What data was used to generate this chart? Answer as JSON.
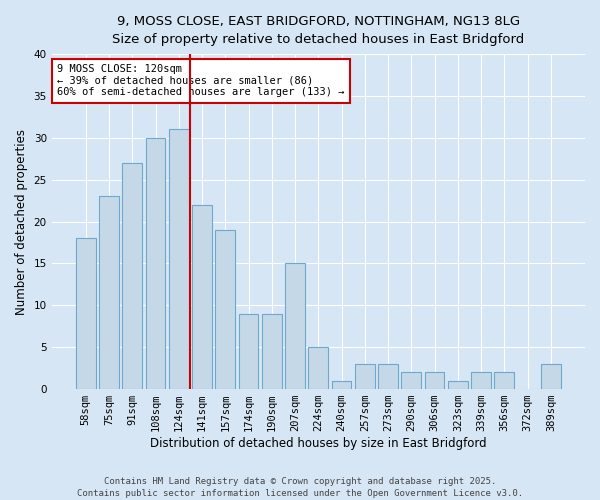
{
  "title_line1": "9, MOSS CLOSE, EAST BRIDGFORD, NOTTINGHAM, NG13 8LG",
  "title_line2": "Size of property relative to detached houses in East Bridgford",
  "xlabel": "Distribution of detached houses by size in East Bridgford",
  "ylabel": "Number of detached properties",
  "categories": [
    "58sqm",
    "75sqm",
    "91sqm",
    "108sqm",
    "124sqm",
    "141sqm",
    "157sqm",
    "174sqm",
    "190sqm",
    "207sqm",
    "224sqm",
    "240sqm",
    "257sqm",
    "273sqm",
    "290sqm",
    "306sqm",
    "323sqm",
    "339sqm",
    "356sqm",
    "372sqm",
    "389sqm"
  ],
  "values": [
    18,
    23,
    27,
    30,
    31,
    22,
    19,
    9,
    9,
    15,
    5,
    1,
    3,
    3,
    2,
    2,
    1,
    2,
    2,
    0,
    3
  ],
  "bar_color": "#c5d8e8",
  "bar_edge_color": "#6ea8cb",
  "background_color": "#d6e6f5",
  "ylim": [
    0,
    40
  ],
  "yticks": [
    0,
    5,
    10,
    15,
    20,
    25,
    30,
    35,
    40
  ],
  "vline_x": 4.5,
  "vline_color": "#cc0000",
  "annotation_text": "9 MOSS CLOSE: 120sqm\n← 39% of detached houses are smaller (86)\n60% of semi-detached houses are larger (133) →",
  "annotation_box_color": "#ffffff",
  "annotation_box_edge": "#cc0000",
  "footer_line1": "Contains HM Land Registry data © Crown copyright and database right 2025.",
  "footer_line2": "Contains public sector information licensed under the Open Government Licence v3.0.",
  "title_fontsize": 9.5,
  "axis_label_fontsize": 8.5,
  "tick_fontsize": 7.5,
  "footer_fontsize": 6.5,
  "annotation_fontsize": 7.5
}
